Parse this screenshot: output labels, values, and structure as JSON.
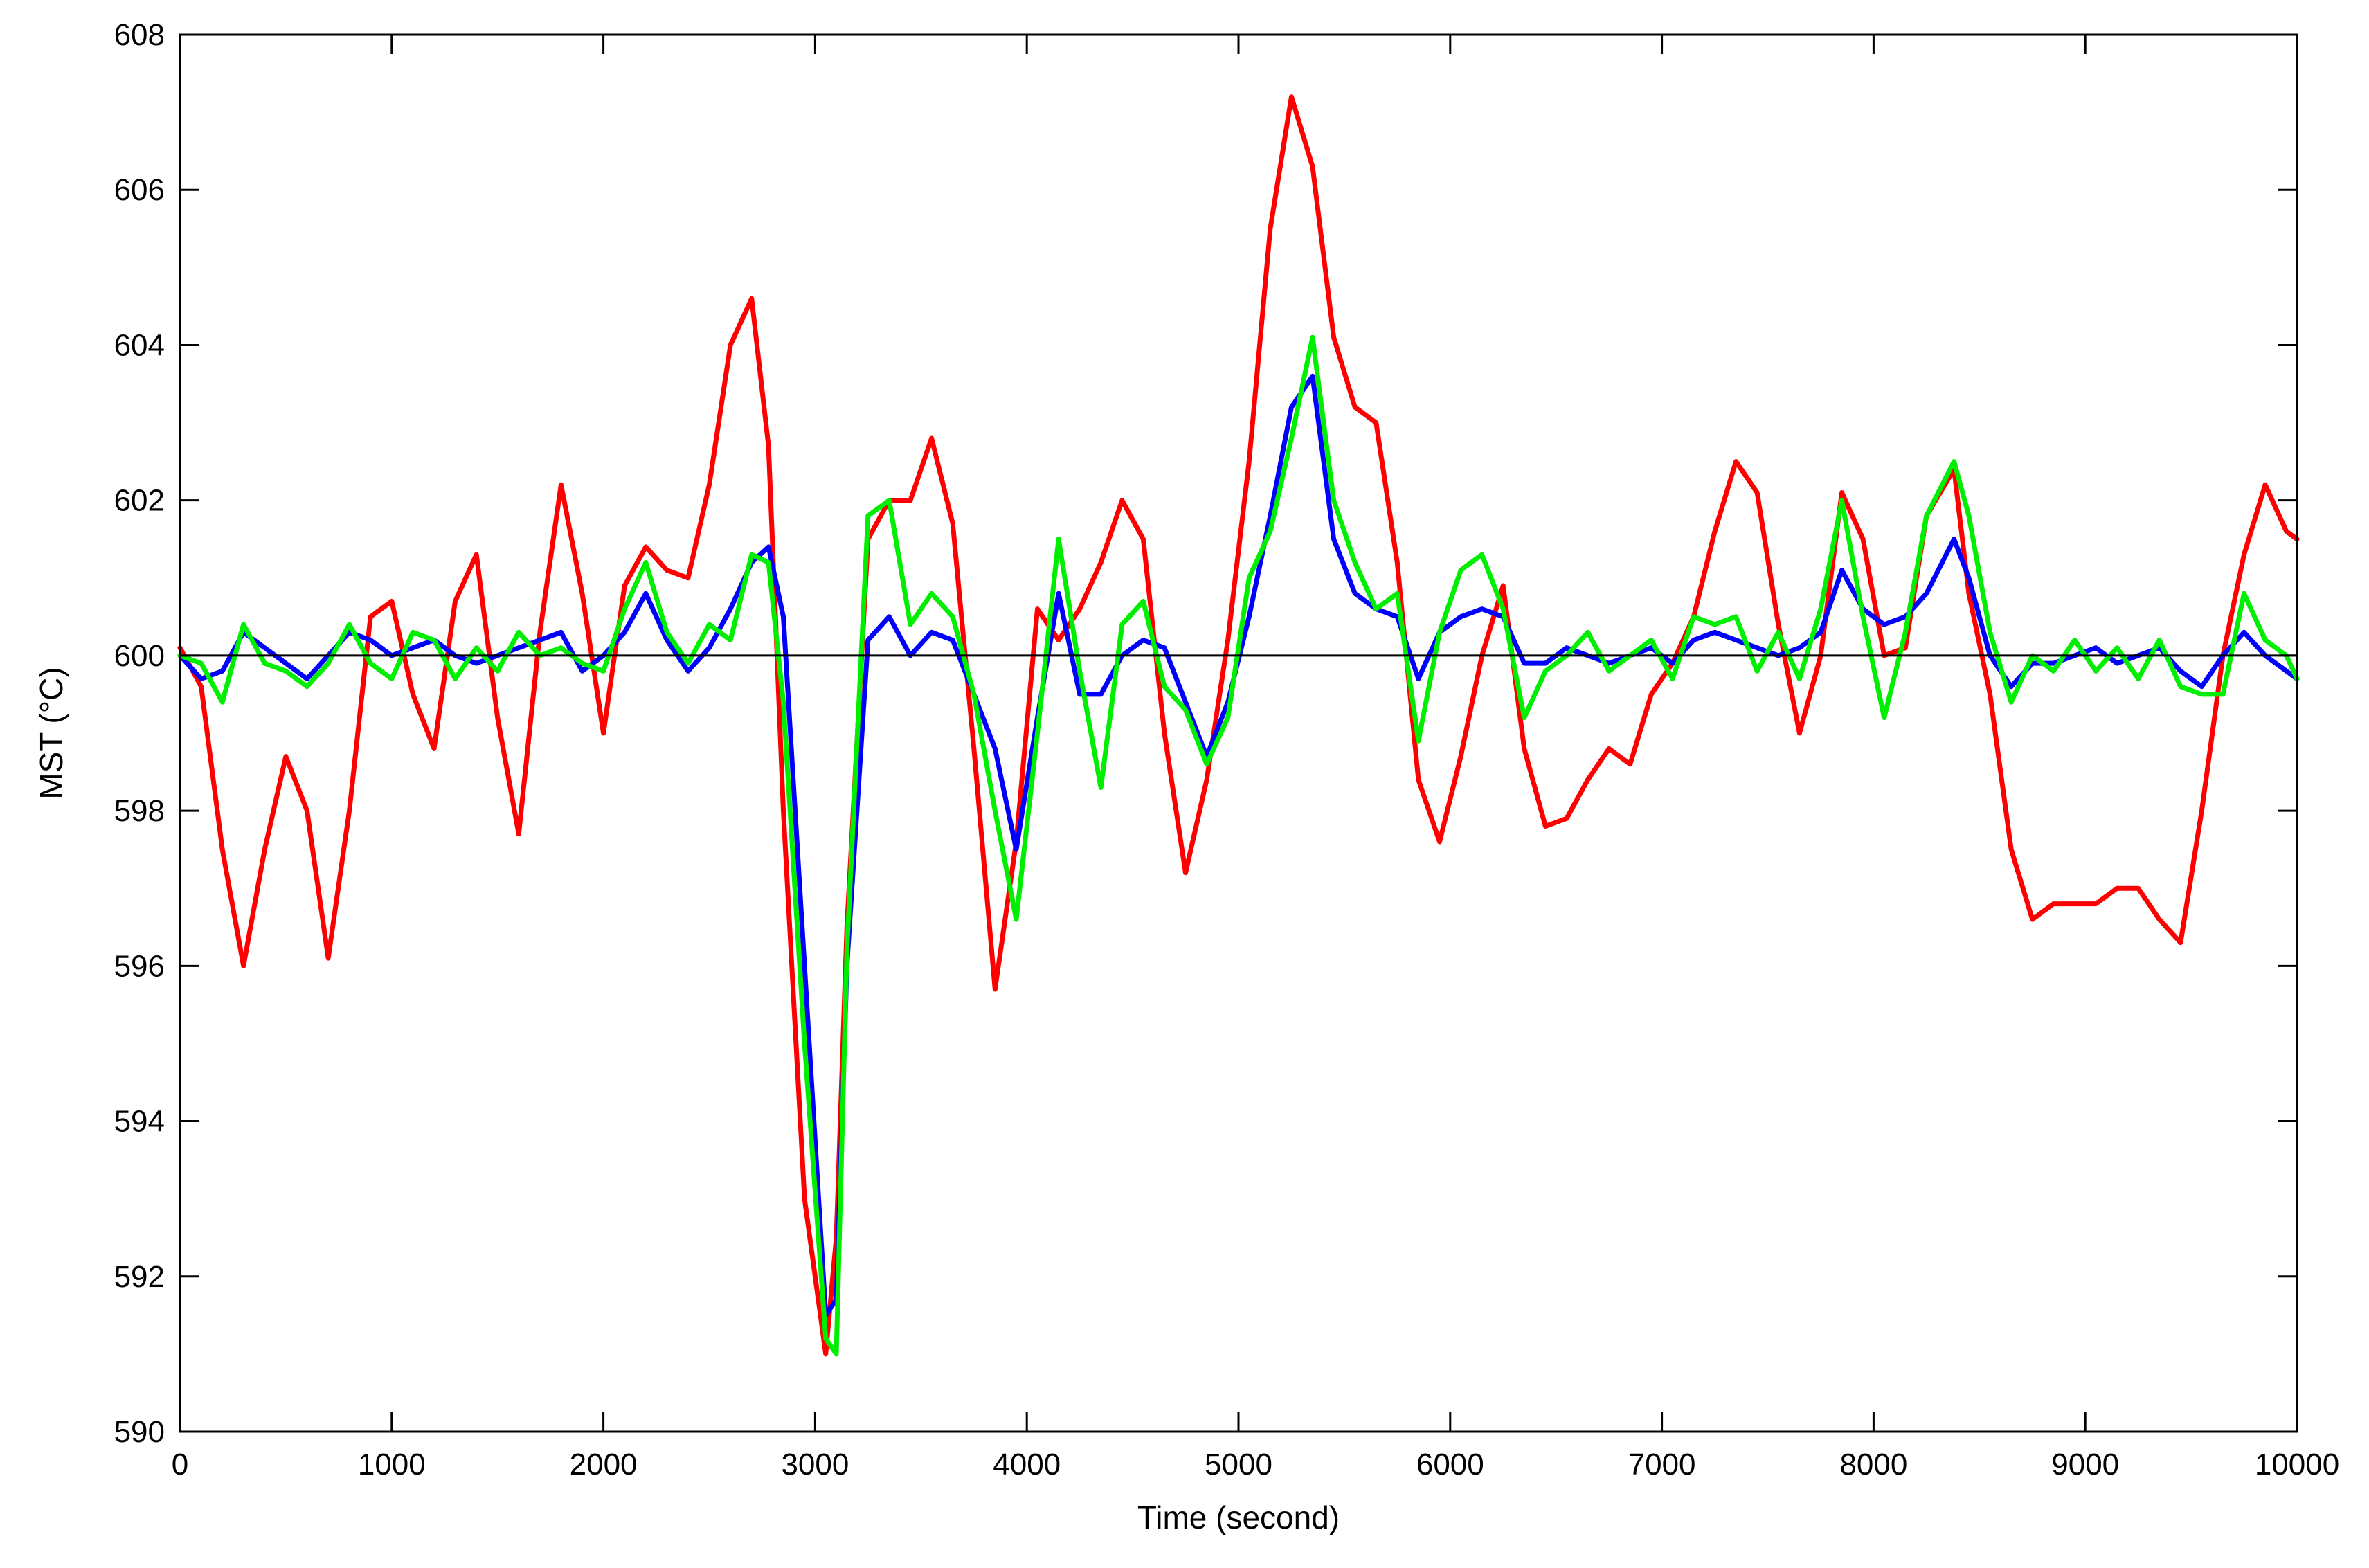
{
  "chart_data": {
    "type": "line",
    "title": "",
    "xlabel": "Time (second)",
    "ylabel": "MST (°C)",
    "xlim": [
      0,
      10000
    ],
    "ylim": [
      590,
      608
    ],
    "xticks": [
      0,
      1000,
      2000,
      3000,
      4000,
      5000,
      6000,
      7000,
      8000,
      9000,
      10000
    ],
    "yticks": [
      590,
      592,
      594,
      596,
      598,
      600,
      602,
      604,
      606,
      608
    ],
    "grid": false,
    "legend": "none",
    "reference_line": {
      "y": 600,
      "color": "#000000"
    },
    "series": [
      {
        "color": "#ff0000",
        "x": [
          0,
          100,
          200,
          300,
          400,
          500,
          600,
          700,
          800,
          900,
          1000,
          1100,
          1200,
          1300,
          1400,
          1500,
          1600,
          1700,
          1800,
          1900,
          2000,
          2100,
          2200,
          2300,
          2400,
          2500,
          2600,
          2700,
          2780,
          2850,
          2950,
          3050,
          3100,
          3150,
          3250,
          3350,
          3450,
          3550,
          3650,
          3750,
          3850,
          3950,
          4050,
          4150,
          4250,
          4350,
          4450,
          4550,
          4650,
          4750,
          4850,
          4950,
          5050,
          5150,
          5250,
          5350,
          5450,
          5550,
          5650,
          5750,
          5850,
          5950,
          6050,
          6150,
          6250,
          6350,
          6450,
          6550,
          6650,
          6750,
          6850,
          6950,
          7050,
          7150,
          7250,
          7350,
          7450,
          7550,
          7650,
          7750,
          7850,
          7950,
          8050,
          8150,
          8250,
          8380,
          8450,
          8550,
          8650,
          8750,
          8850,
          8950,
          9050,
          9150,
          9250,
          9350,
          9450,
          9550,
          9650,
          9750,
          9850,
          9950,
          10000
        ],
        "y": [
          600.1,
          599.6,
          597.5,
          596.0,
          597.5,
          598.7,
          598.0,
          596.1,
          598.0,
          600.5,
          600.7,
          599.5,
          598.8,
          600.7,
          601.3,
          599.2,
          597.7,
          600.3,
          602.2,
          600.8,
          599.0,
          600.9,
          601.4,
          601.1,
          601.0,
          602.2,
          604.0,
          604.6,
          602.7,
          598.0,
          593.0,
          591.0,
          592.5,
          596.5,
          601.5,
          602.0,
          602.0,
          602.8,
          601.7,
          598.8,
          595.7,
          597.6,
          600.6,
          600.2,
          600.6,
          601.2,
          602.0,
          601.5,
          599.0,
          597.2,
          598.4,
          600.2,
          602.5,
          605.5,
          607.2,
          606.3,
          604.1,
          603.2,
          603.0,
          601.2,
          598.4,
          597.6,
          598.7,
          600.0,
          600.9,
          598.8,
          597.8,
          597.9,
          598.4,
          598.8,
          598.6,
          599.5,
          599.9,
          600.5,
          601.6,
          602.5,
          602.1,
          600.4,
          599.0,
          600.0,
          602.1,
          601.5,
          600.0,
          600.1,
          601.8,
          602.4,
          600.8,
          599.5,
          597.5,
          596.6,
          596.8,
          596.8,
          596.8,
          597.0,
          597.0,
          596.6,
          596.3,
          598.0,
          600.0,
          601.3,
          602.2,
          601.6,
          601.5
        ]
      },
      {
        "color": "#0000ff",
        "x": [
          0,
          100,
          200,
          300,
          400,
          500,
          600,
          700,
          800,
          900,
          1000,
          1100,
          1200,
          1300,
          1400,
          1500,
          1600,
          1700,
          1800,
          1900,
          2000,
          2100,
          2200,
          2300,
          2400,
          2500,
          2600,
          2700,
          2780,
          2850,
          2950,
          3050,
          3100,
          3150,
          3250,
          3350,
          3450,
          3550,
          3650,
          3750,
          3850,
          3950,
          4050,
          4150,
          4250,
          4350,
          4450,
          4550,
          4650,
          4750,
          4850,
          4950,
          5050,
          5150,
          5250,
          5350,
          5450,
          5550,
          5650,
          5750,
          5850,
          5950,
          6050,
          6150,
          6250,
          6350,
          6450,
          6550,
          6650,
          6750,
          6850,
          6950,
          7050,
          7150,
          7250,
          7350,
          7450,
          7550,
          7650,
          7750,
          7850,
          7950,
          8050,
          8150,
          8250,
          8380,
          8450,
          8550,
          8650,
          8750,
          8850,
          8950,
          9050,
          9150,
          9250,
          9350,
          9450,
          9550,
          9650,
          9750,
          9850,
          9950,
          10000
        ],
        "y": [
          600.0,
          599.7,
          599.8,
          600.3,
          600.1,
          599.9,
          599.7,
          600.0,
          600.3,
          600.2,
          600.0,
          600.1,
          600.2,
          600.0,
          599.9,
          600.0,
          600.1,
          600.2,
          600.3,
          599.8,
          600.0,
          600.3,
          600.8,
          600.2,
          599.8,
          600.1,
          600.6,
          601.2,
          601.4,
          600.5,
          596.0,
          591.5,
          591.7,
          596.0,
          600.2,
          600.5,
          600.0,
          600.3,
          600.2,
          599.5,
          598.8,
          597.5,
          599.2,
          600.8,
          599.5,
          599.5,
          600.0,
          600.2,
          600.1,
          599.4,
          598.7,
          599.4,
          600.5,
          601.8,
          603.2,
          603.6,
          601.5,
          600.8,
          600.6,
          600.5,
          599.7,
          600.3,
          600.5,
          600.6,
          600.5,
          599.9,
          599.9,
          600.1,
          600.0,
          599.9,
          600.0,
          600.1,
          599.9,
          600.2,
          600.3,
          600.2,
          600.1,
          600.0,
          600.1,
          600.3,
          601.1,
          600.6,
          600.4,
          600.5,
          600.8,
          601.5,
          601.0,
          600.0,
          599.6,
          599.9,
          599.9,
          600.0,
          600.1,
          599.9,
          600.0,
          600.1,
          599.8,
          599.6,
          600.0,
          600.3,
          600.0,
          599.8,
          599.7
        ]
      },
      {
        "color": "#00ee00",
        "x": [
          0,
          100,
          200,
          300,
          400,
          500,
          600,
          700,
          800,
          900,
          1000,
          1100,
          1200,
          1300,
          1400,
          1500,
          1600,
          1700,
          1800,
          1900,
          2000,
          2100,
          2200,
          2300,
          2400,
          2500,
          2600,
          2700,
          2780,
          2850,
          2950,
          3050,
          3100,
          3150,
          3250,
          3350,
          3450,
          3550,
          3650,
          3750,
          3850,
          3950,
          4050,
          4150,
          4250,
          4350,
          4450,
          4550,
          4650,
          4750,
          4850,
          4950,
          5050,
          5150,
          5250,
          5350,
          5450,
          5550,
          5650,
          5750,
          5850,
          5950,
          6050,
          6150,
          6250,
          6350,
          6450,
          6550,
          6650,
          6750,
          6850,
          6950,
          7050,
          7150,
          7250,
          7350,
          7450,
          7550,
          7650,
          7750,
          7850,
          7950,
          8050,
          8150,
          8250,
          8380,
          8450,
          8550,
          8650,
          8750,
          8850,
          8950,
          9050,
          9150,
          9250,
          9350,
          9450,
          9550,
          9650,
          9750,
          9850,
          9950,
          10000
        ],
        "y": [
          600.0,
          599.9,
          599.4,
          600.4,
          599.9,
          599.8,
          599.6,
          599.9,
          600.4,
          599.9,
          599.7,
          600.3,
          600.2,
          599.7,
          600.1,
          599.8,
          600.3,
          600.0,
          600.1,
          599.9,
          599.8,
          600.6,
          601.2,
          600.3,
          599.9,
          600.4,
          600.2,
          601.3,
          601.2,
          599.4,
          595.0,
          591.2,
          591.0,
          596.2,
          601.8,
          602.0,
          600.4,
          600.8,
          600.5,
          599.5,
          598.0,
          596.6,
          599.0,
          601.5,
          599.8,
          598.3,
          600.4,
          600.7,
          599.6,
          599.3,
          598.6,
          599.2,
          601.0,
          601.6,
          602.8,
          604.1,
          602.0,
          601.2,
          600.6,
          600.8,
          598.9,
          600.3,
          601.1,
          601.3,
          600.6,
          599.2,
          599.8,
          600.0,
          600.3,
          599.8,
          600.0,
          600.2,
          599.7,
          600.5,
          600.4,
          600.5,
          599.8,
          600.3,
          599.7,
          600.6,
          602.0,
          600.5,
          599.2,
          600.3,
          601.8,
          602.5,
          601.8,
          600.3,
          599.4,
          600.0,
          599.8,
          600.2,
          599.8,
          600.1,
          599.7,
          600.2,
          599.6,
          599.5,
          599.5,
          600.8,
          600.2,
          600.0,
          599.7
        ]
      }
    ]
  }
}
